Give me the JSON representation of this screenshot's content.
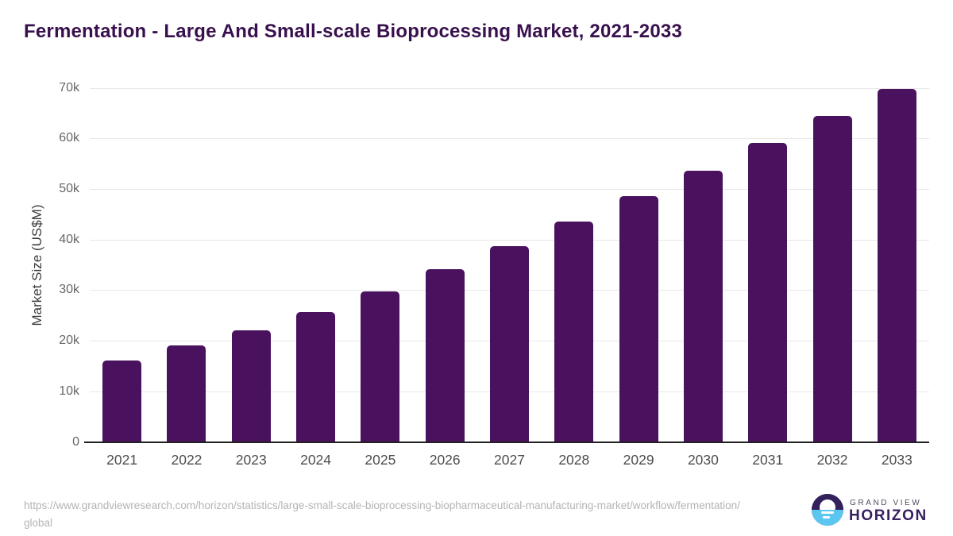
{
  "title": "Fermentation - Large And Small-scale Bioprocessing Market, 2021-2033",
  "chart_data": {
    "type": "bar",
    "title": "Fermentation - Large And Small-scale Bioprocessing Market, 2021-2033",
    "categories": [
      "2021",
      "2022",
      "2023",
      "2024",
      "2025",
      "2026",
      "2027",
      "2028",
      "2029",
      "2030",
      "2031",
      "2032",
      "2033"
    ],
    "values": [
      16100,
      19000,
      22100,
      25700,
      29700,
      34100,
      38700,
      43500,
      48500,
      53600,
      59100,
      64400,
      69800
    ],
    "xlabel": "",
    "ylabel": "Market Size (US$M)",
    "ylim": [
      0,
      70000
    ],
    "ytick_values": [
      0,
      10000,
      20000,
      30000,
      40000,
      50000,
      60000,
      70000
    ],
    "ytick_labels": [
      "0",
      "10k",
      "20k",
      "30k",
      "40k",
      "50k",
      "60k",
      "70k"
    ],
    "grid": true,
    "legend": "none",
    "bar_color": "#49115e"
  },
  "footer": {
    "source_url": "https://www.grandviewresearch.com/horizon/statistics/large-small-scale-bioprocessing-biopharmaceutical-manufacturing-market/workflow/fermentation/global",
    "logo": {
      "brand_top": "GRAND VIEW",
      "brand_bottom": "HORIZON"
    }
  },
  "colors": {
    "title": "#38104d",
    "bar": "#49115e",
    "gridline": "#e8e8e8",
    "axis_line": "#212121",
    "ytick_label": "#666666",
    "xtick_label": "#4d4d4d",
    "url_text": "#b4b4b4",
    "logo_dark": "#32215a",
    "logo_blue": "#5bc6f0"
  }
}
